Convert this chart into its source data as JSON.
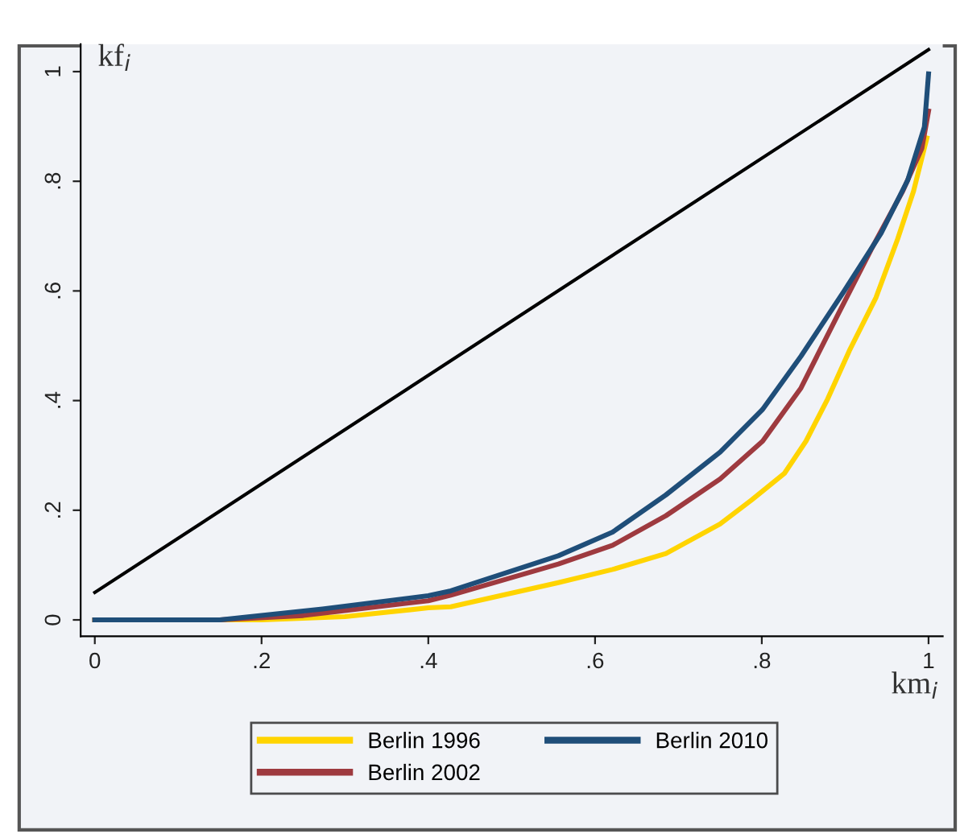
{
  "chart_data": {
    "type": "line",
    "xlabel": "km$_{i}$",
    "ylabel": "kf$_{i}$",
    "xlim": [
      -0.017,
      1.017
    ],
    "ylim": [
      -0.03,
      1.05
    ],
    "xticks": [
      {
        "value": 0,
        "label": "0"
      },
      {
        "value": 0.2,
        "label": ".2"
      },
      {
        "value": 0.4,
        "label": ".4"
      },
      {
        "value": 0.6,
        "label": ".6"
      },
      {
        "value": 0.8,
        "label": ".8"
      },
      {
        "value": 1,
        "label": "1"
      }
    ],
    "yticks": [
      {
        "value": 0,
        "label": "0"
      },
      {
        "value": 0.2,
        "label": ".2"
      },
      {
        "value": 0.4,
        "label": ".4"
      },
      {
        "value": 0.6,
        "label": ".6"
      },
      {
        "value": 0.8,
        "label": ".8"
      },
      {
        "value": 1,
        "label": "1"
      }
    ],
    "grid": false,
    "legend": "bottom",
    "marker": "none",
    "line_style": "solid",
    "series": [
      {
        "name": "Berlin 1996",
        "color": "#ffd400",
        "x": [
          0,
          0.2,
          0.3,
          0.4,
          0.427,
          0.556,
          0.621,
          0.685,
          0.75,
          0.788,
          0.827,
          0.853,
          0.879,
          0.905,
          0.937,
          0.963,
          0.982,
          0.998
        ],
        "values": [
          0,
          0,
          0.006,
          0.022,
          0.024,
          0.068,
          0.092,
          0.121,
          0.175,
          0.219,
          0.267,
          0.326,
          0.403,
          0.491,
          0.588,
          0.695,
          0.782,
          0.879
        ]
      },
      {
        "name": "Berlin 2002",
        "color": "#9e3a3f",
        "x": [
          0,
          0.15,
          0.25,
          0.4,
          0.427,
          0.556,
          0.621,
          0.685,
          0.75,
          0.801,
          0.847,
          0.892,
          0.931,
          0.969,
          0.992,
          1.0
        ],
        "values": [
          0,
          0,
          0.008,
          0.035,
          0.045,
          0.102,
          0.136,
          0.19,
          0.257,
          0.326,
          0.423,
          0.559,
          0.675,
          0.782,
          0.86,
          0.928
        ]
      },
      {
        "name": "Berlin 2010",
        "color": "#1f4e79",
        "x": [
          0,
          0.15,
          0.273,
          0.4,
          0.427,
          0.556,
          0.621,
          0.685,
          0.75,
          0.801,
          0.847,
          0.898,
          0.943,
          0.975,
          0.995,
          1.0
        ],
        "values": [
          0,
          0,
          0.02,
          0.044,
          0.053,
          0.117,
          0.16,
          0.228,
          0.306,
          0.384,
          0.481,
          0.598,
          0.705,
          0.802,
          0.899,
          0.996
        ]
      },
      {
        "color": "#000000",
        "x": [
          0,
          1
        ],
        "values": [
          0.05,
          1.04
        ]
      }
    ]
  }
}
